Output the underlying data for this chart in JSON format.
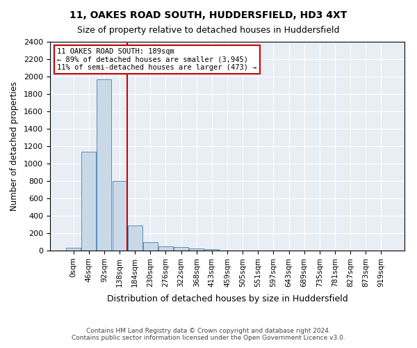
{
  "title": "11, OAKES ROAD SOUTH, HUDDERSFIELD, HD3 4XT",
  "subtitle": "Size of property relative to detached houses in Huddersfield",
  "xlabel": "Distribution of detached houses by size in Huddersfield",
  "ylabel": "Number of detached properties",
  "bar_color": "#c9d9e8",
  "bar_edge_color": "#5b8db8",
  "background_color": "#ffffff",
  "plot_bg_color": "#e8eef4",
  "grid_color": "#ffffff",
  "bin_labels": [
    "0sqm",
    "46sqm",
    "92sqm",
    "138sqm",
    "184sqm",
    "230sqm",
    "276sqm",
    "322sqm",
    "368sqm",
    "413sqm",
    "459sqm",
    "505sqm",
    "551sqm",
    "597sqm",
    "643sqm",
    "689sqm",
    "735sqm",
    "781sqm",
    "827sqm",
    "873sqm",
    "919sqm"
  ],
  "bar_heights": [
    30,
    1140,
    1970,
    800,
    290,
    95,
    50,
    40,
    25,
    15,
    0,
    0,
    0,
    0,
    0,
    0,
    0,
    0,
    0,
    0,
    0
  ],
  "ylim": [
    0,
    2400
  ],
  "yticks": [
    0,
    200,
    400,
    600,
    800,
    1000,
    1200,
    1400,
    1600,
    1800,
    2000,
    2200,
    2400
  ],
  "red_line_x": 3.5,
  "annotation_text_line1": "11 OAKES ROAD SOUTH: 189sqm",
  "annotation_text_line2": "← 89% of detached houses are smaller (3,945)",
  "annotation_text_line3": "11% of semi-detached houses are larger (473) →",
  "annotation_box_color": "#ffffff",
  "annotation_box_edge": "#cc0000",
  "red_line_color": "#cc0000",
  "footer_line1": "Contains HM Land Registry data © Crown copyright and database right 2024.",
  "footer_line2": "Contains public sector information licensed under the Open Government Licence v3.0."
}
